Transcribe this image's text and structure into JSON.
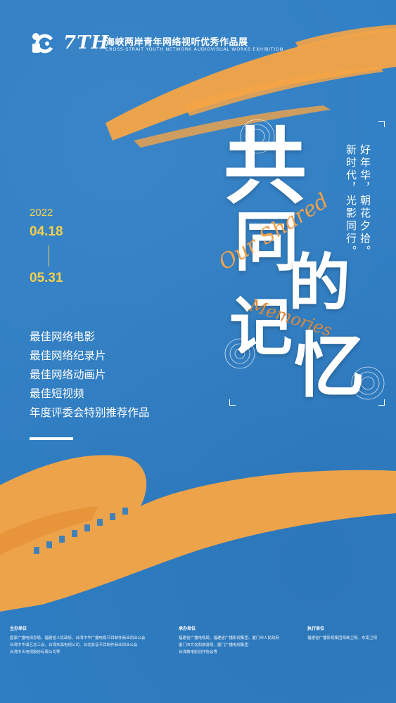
{
  "header": {
    "edition": "7TH",
    "title": "海峡两岸青年网络视听优秀作品展",
    "subtitle": "CROSS-STRAIT YOUTH NETWORK AUDIOVISUAL WORKS EXHIBITION"
  },
  "dates": {
    "year": "2022",
    "start": "04.18",
    "end": "05.31"
  },
  "categories": [
    "最佳网络电影",
    "最佳网络纪录片",
    "最佳网络动画片",
    "最佳短视频",
    "年度评委会特别推荐作品"
  ],
  "theme": {
    "chars": [
      "共",
      "同",
      "的",
      "记",
      "忆"
    ],
    "script_1": "Our Shared",
    "script_2": "Memories"
  },
  "poem": {
    "line_1": "好年华，朝花夕拾。",
    "line_2": "新时代，光影同行。"
  },
  "footer": {
    "host": {
      "title": "主办单位",
      "lines": [
        "国家广播电视总局、福建省人民政府、台湾中华广播电视节目制作商业同业公会",
        "台湾中华演艺总工会、台湾东森电视公司、台北影音节目制作商业同业公会",
        "台湾中天电视股份有限公司等"
      ]
    },
    "organizer": {
      "title": "承办单位",
      "lines": [
        "福建省广播电视局、福建省广播影视集团、厦门市人民政府",
        "厦门市文化和旅游局、厦门广播电视集团",
        "台湾微电影创作协会等"
      ]
    },
    "executor": {
      "title": "执行单位",
      "lines": [
        "福建省广播影视集团海峡卫视、东南卫视"
      ]
    }
  },
  "colors": {
    "background": "#2f7ec4",
    "accent_orange": "#f4a446",
    "accent_yellow": "#f5d04a"
  }
}
